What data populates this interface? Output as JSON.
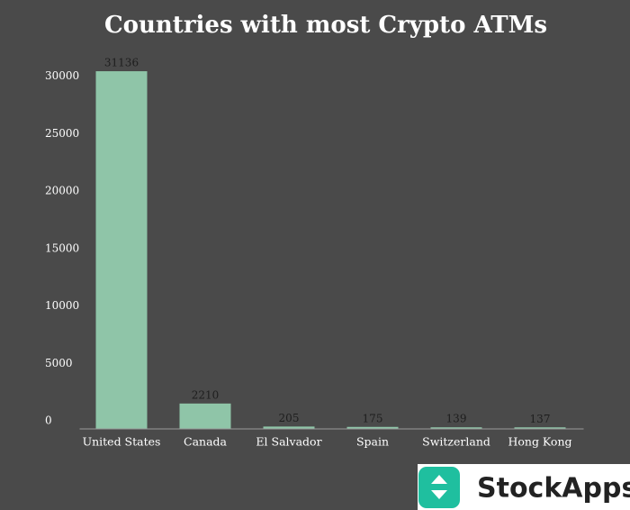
{
  "chart_data": {
    "type": "bar",
    "title": "Countries with most Crypto ATMs",
    "categories": [
      "United States",
      "Canada",
      "El Salvador",
      "Spain",
      "Switzerland",
      "Hong Kong"
    ],
    "values": [
      31136,
      2210,
      205,
      175,
      139,
      137
    ],
    "color": "#8fc5a8",
    "ylim": [
      0,
      31500
    ],
    "yticks": [
      0,
      5000,
      10000,
      15000,
      20000,
      25000,
      30000
    ],
    "grid": false
  },
  "logo": {
    "text": "StockApps"
  }
}
